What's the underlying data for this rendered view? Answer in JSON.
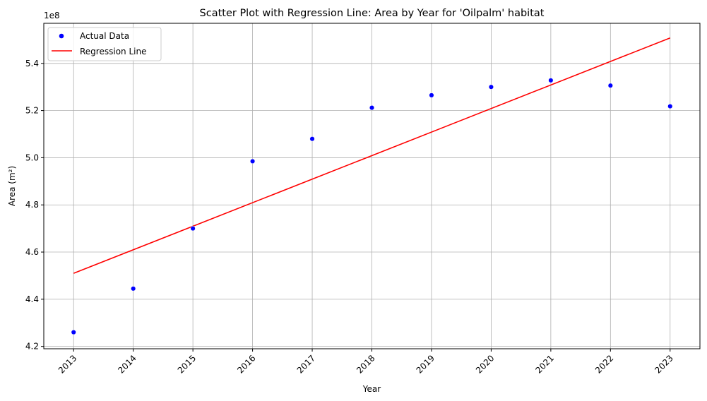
{
  "chart_data": {
    "type": "scatter",
    "title": "Scatter Plot with Regression Line: Area by Year for 'Oilpalm' habitat",
    "xlabel": "Year",
    "ylabel": "Area (m²)",
    "y_offset_label": "1e8",
    "x": [
      2013,
      2014,
      2015,
      2016,
      2017,
      2018,
      2019,
      2020,
      2021,
      2022,
      2023
    ],
    "x_tick_labels": [
      "2013",
      "2014",
      "2015",
      "2016",
      "2017",
      "2018",
      "2019",
      "2020",
      "2021",
      "2022",
      "2023"
    ],
    "y_tick_labels": [
      "4.2",
      "4.4",
      "4.6",
      "4.8",
      "5.0",
      "5.2",
      "5.4"
    ],
    "y_ticks": [
      4.2,
      4.4,
      4.6,
      4.8,
      5.0,
      5.2,
      5.4
    ],
    "xlim": [
      2012.5,
      2023.5
    ],
    "ylim": [
      4.19,
      5.57
    ],
    "grid": true,
    "legend_position": "top-left",
    "series": [
      {
        "name": "Actual Data",
        "kind": "scatter",
        "color": "#0000ff",
        "y": [
          4.26,
          4.445,
          4.7,
          4.985,
          5.08,
          5.212,
          5.265,
          5.3,
          5.328,
          5.306,
          5.218
        ]
      },
      {
        "name": "Regression Line",
        "kind": "line",
        "color": "#ff0000",
        "x": [
          2013,
          2023
        ],
        "y": [
          4.51,
          5.508
        ]
      }
    ]
  }
}
